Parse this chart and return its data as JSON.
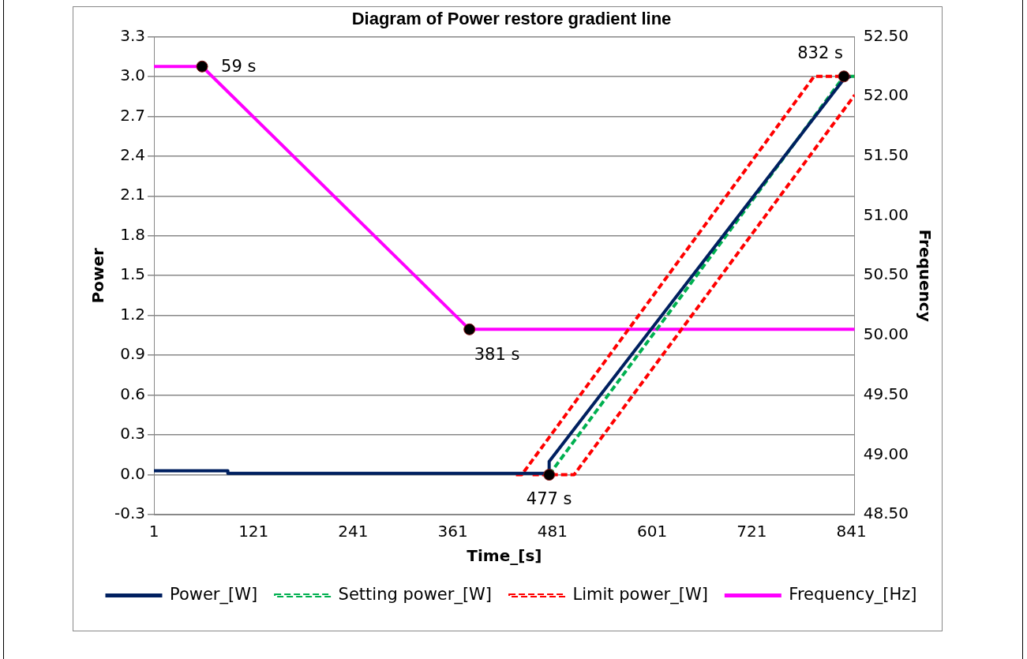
{
  "chart_data": {
    "type": "line",
    "title": "Diagram of Power restore gradient line",
    "xlabel": "Time_[s]",
    "ylabel": "Power",
    "y2label": "Frequency",
    "xlim": [
      1,
      845
    ],
    "xticks": [
      1,
      121,
      241,
      361,
      481,
      601,
      721,
      841
    ],
    "ylim": [
      -0.3,
      3.3
    ],
    "yticks": [
      {
        "value": -0.3,
        "label": "-0.3"
      },
      {
        "value": 0,
        "label": "0.0"
      },
      {
        "value": 0.3,
        "label": "0.3"
      },
      {
        "value": 0.6,
        "label": "0.6"
      },
      {
        "value": 0.9,
        "label": "0.9"
      },
      {
        "value": 1.2,
        "label": "1.2"
      },
      {
        "value": 1.5,
        "label": "1.5"
      },
      {
        "value": 1.8,
        "label": "1.8"
      },
      {
        "value": 2.1,
        "label": "2.1"
      },
      {
        "value": 2.4,
        "label": "2.4"
      },
      {
        "value": 2.7,
        "label": "2.7"
      },
      {
        "value": 3.0,
        "label": "3.0"
      },
      {
        "value": 3.3,
        "label": "3.3"
      }
    ],
    "y2lim": [
      48.5,
      52.5
    ],
    "y2ticks": [
      {
        "value": 48.5,
        "label": "48.50"
      },
      {
        "value": 49,
        "label": "49.00"
      },
      {
        "value": 49.5,
        "label": "49.50"
      },
      {
        "value": 50,
        "label": "50.00"
      },
      {
        "value": 50.5,
        "label": "50.50"
      },
      {
        "value": 51,
        "label": "51.00"
      },
      {
        "value": 51.5,
        "label": "51.50"
      },
      {
        "value": 52,
        "label": "52.00"
      },
      {
        "value": 52.5,
        "label": "52.50"
      }
    ],
    "grid": "y",
    "legend": "bottom",
    "marker": "none",
    "series": [
      {
        "name": "Power_[W]",
        "color": "#002060",
        "line_style": "solid",
        "x": [
          1,
          90,
          90,
          477,
          477,
          832,
          840
        ],
        "values": [
          0.03,
          0.03,
          0.01,
          0.01,
          0.1,
          2.98,
          3.0
        ]
      },
      {
        "name": "Setting power_[W]",
        "color": "#00b050",
        "line_style": "dashed",
        "x": [
          477,
          832,
          845
        ],
        "values": [
          0,
          3.0,
          3.0
        ]
      },
      {
        "name": "Limit power_[W]",
        "color": "#ff0000",
        "line_style": "dashed",
        "x": [
          437,
          444,
          796,
          845
        ],
        "values": [
          0,
          0,
          3.0,
          3.0
        ]
      },
      {
        "color": "#ff0000",
        "line_style": "dashed",
        "x": [
          457,
          507,
          845
        ],
        "values": [
          0,
          0,
          2.86
        ]
      },
      {
        "name": "Frequency_[Hz]",
        "color": "#ff00ff",
        "line_style": "solid",
        "axis": "y2",
        "x": [
          1,
          59,
          381,
          845
        ],
        "values": [
          52.25,
          52.25,
          50.05,
          50.05
        ]
      },
      {
        "type": "scatter",
        "color": "#000000",
        "marker": "circle",
        "axis": "y2",
        "x": [
          59,
          381
        ],
        "values": [
          52.25,
          50.05
        ]
      },
      {
        "type": "scatter",
        "color": "#000000",
        "marker": "circle",
        "x": [
          477,
          832
        ],
        "values": [
          0,
          3.0
        ]
      }
    ],
    "annotations": [
      {
        "text": "59 s",
        "x": 59,
        "y": 3.07
      },
      {
        "text": "381 s",
        "x": 381,
        "y": 1.09
      },
      {
        "text": "477 s",
        "x": 477,
        "y": 0
      },
      {
        "text": "832 s",
        "x": 832,
        "y": 3.0
      }
    ]
  }
}
